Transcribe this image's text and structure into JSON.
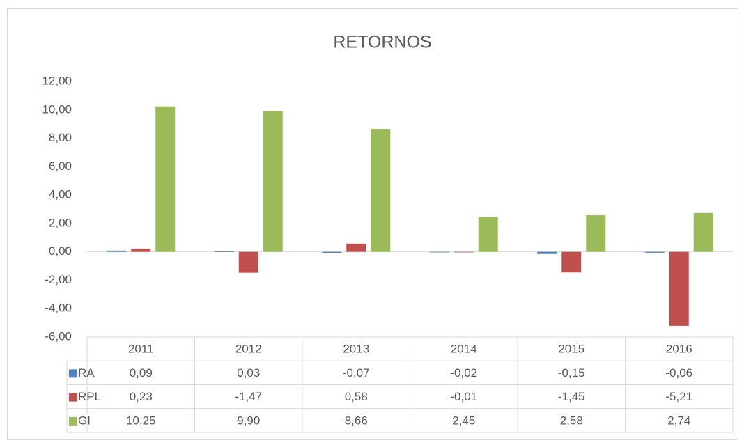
{
  "chart_data": {
    "type": "bar",
    "title": "RETORNOS",
    "categories": [
      "2011",
      "2012",
      "2013",
      "2014",
      "2015",
      "2016"
    ],
    "series": [
      {
        "name": "RA",
        "color": "#4f81bd",
        "values": [
          0.09,
          0.03,
          -0.07,
          -0.02,
          -0.15,
          -0.06
        ],
        "value_labels": [
          "0,09",
          "0,03",
          "-0,07",
          "-0,02",
          "-0,15",
          "-0,06"
        ]
      },
      {
        "name": "RPL",
        "color": "#c0504d",
        "values": [
          0.23,
          -1.47,
          0.58,
          -0.01,
          -1.45,
          -5.21
        ],
        "value_labels": [
          "0,23",
          "-1,47",
          "0,58",
          "-0,01",
          "-1,45",
          "-5,21"
        ]
      },
      {
        "name": "GI",
        "color": "#9bbb59",
        "values": [
          10.25,
          9.9,
          8.66,
          2.45,
          2.58,
          2.74
        ],
        "value_labels": [
          "10,25",
          "9,90",
          "8,66",
          "2,45",
          "2,58",
          "2,74"
        ]
      }
    ],
    "ylim": [
      -6,
      12
    ],
    "yticks": [
      {
        "value": -6,
        "label": "-6,00"
      },
      {
        "value": -4,
        "label": "-4,00"
      },
      {
        "value": -2,
        "label": "-2,00"
      },
      {
        "value": 0,
        "label": "0,00"
      },
      {
        "value": 2,
        "label": "2,00"
      },
      {
        "value": 4,
        "label": "4,00"
      },
      {
        "value": 6,
        "label": "6,00"
      },
      {
        "value": 8,
        "label": "8,00"
      },
      {
        "value": 10,
        "label": "10,00"
      },
      {
        "value": 12,
        "label": "12,00"
      }
    ],
    "grid": false
  }
}
